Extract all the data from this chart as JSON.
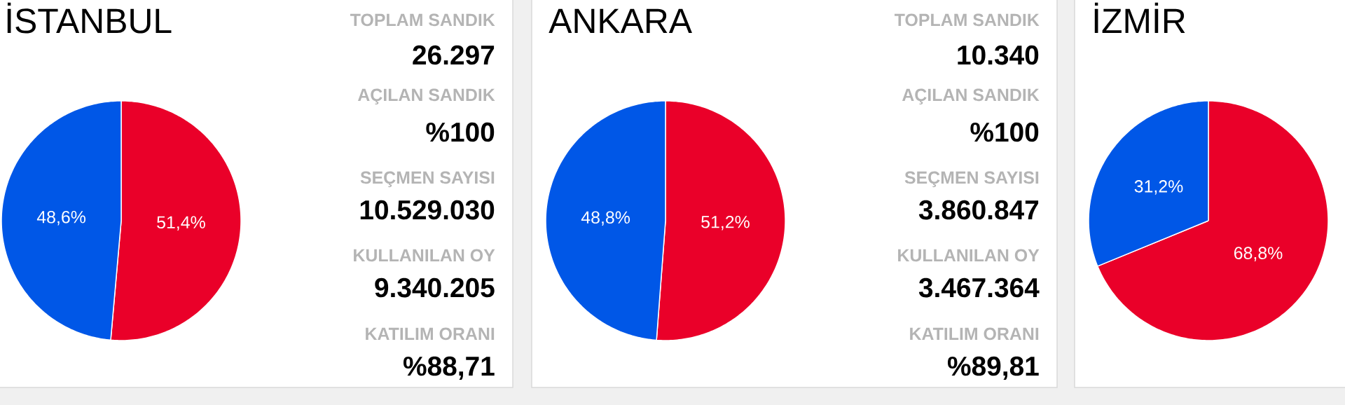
{
  "chart_data": [
    {
      "type": "pie",
      "title": "İSTANBUL",
      "categories": [
        null,
        null
      ],
      "values": [
        51.4,
        48.6
      ],
      "colors": [
        "#ea0029",
        "#0057e7"
      ],
      "value_labels": [
        "51,4%",
        "48,6%"
      ]
    },
    {
      "type": "other",
      "annotations": [
        "TOPLAM SANDIK",
        "26.297",
        "AÇILAN SANDIK",
        "%100",
        "SEÇMEN SAYISI",
        "10.529.030",
        "KULLANILAN OY",
        "9.340.205",
        "KATILIM ORANI",
        "%88,71"
      ]
    },
    {
      "type": "pie",
      "title": "ANKARA",
      "categories": [
        null,
        null
      ],
      "values": [
        51.2,
        48.8
      ],
      "colors": [
        "#ea0029",
        "#0057e7"
      ],
      "value_labels": [
        "51,2%",
        "48,8%"
      ]
    },
    {
      "type": "other",
      "annotations": [
        "TOPLAM SANDIK",
        "10.340",
        "AÇILAN SANDIK",
        "%100",
        "SEÇMEN SAYISI",
        "3.860.847",
        "KULLANILAN OY",
        "3.467.364",
        "KATILIM ORANI",
        "%89,81"
      ]
    },
    {
      "type": "pie",
      "title": "İZMİR",
      "categories": [
        null,
        null
      ],
      "values": [
        68.8,
        31.2
      ],
      "colors": [
        "#ea0029",
        "#0057e7"
      ],
      "value_labels": [
        "68,8%",
        "31,2%"
      ]
    }
  ]
}
